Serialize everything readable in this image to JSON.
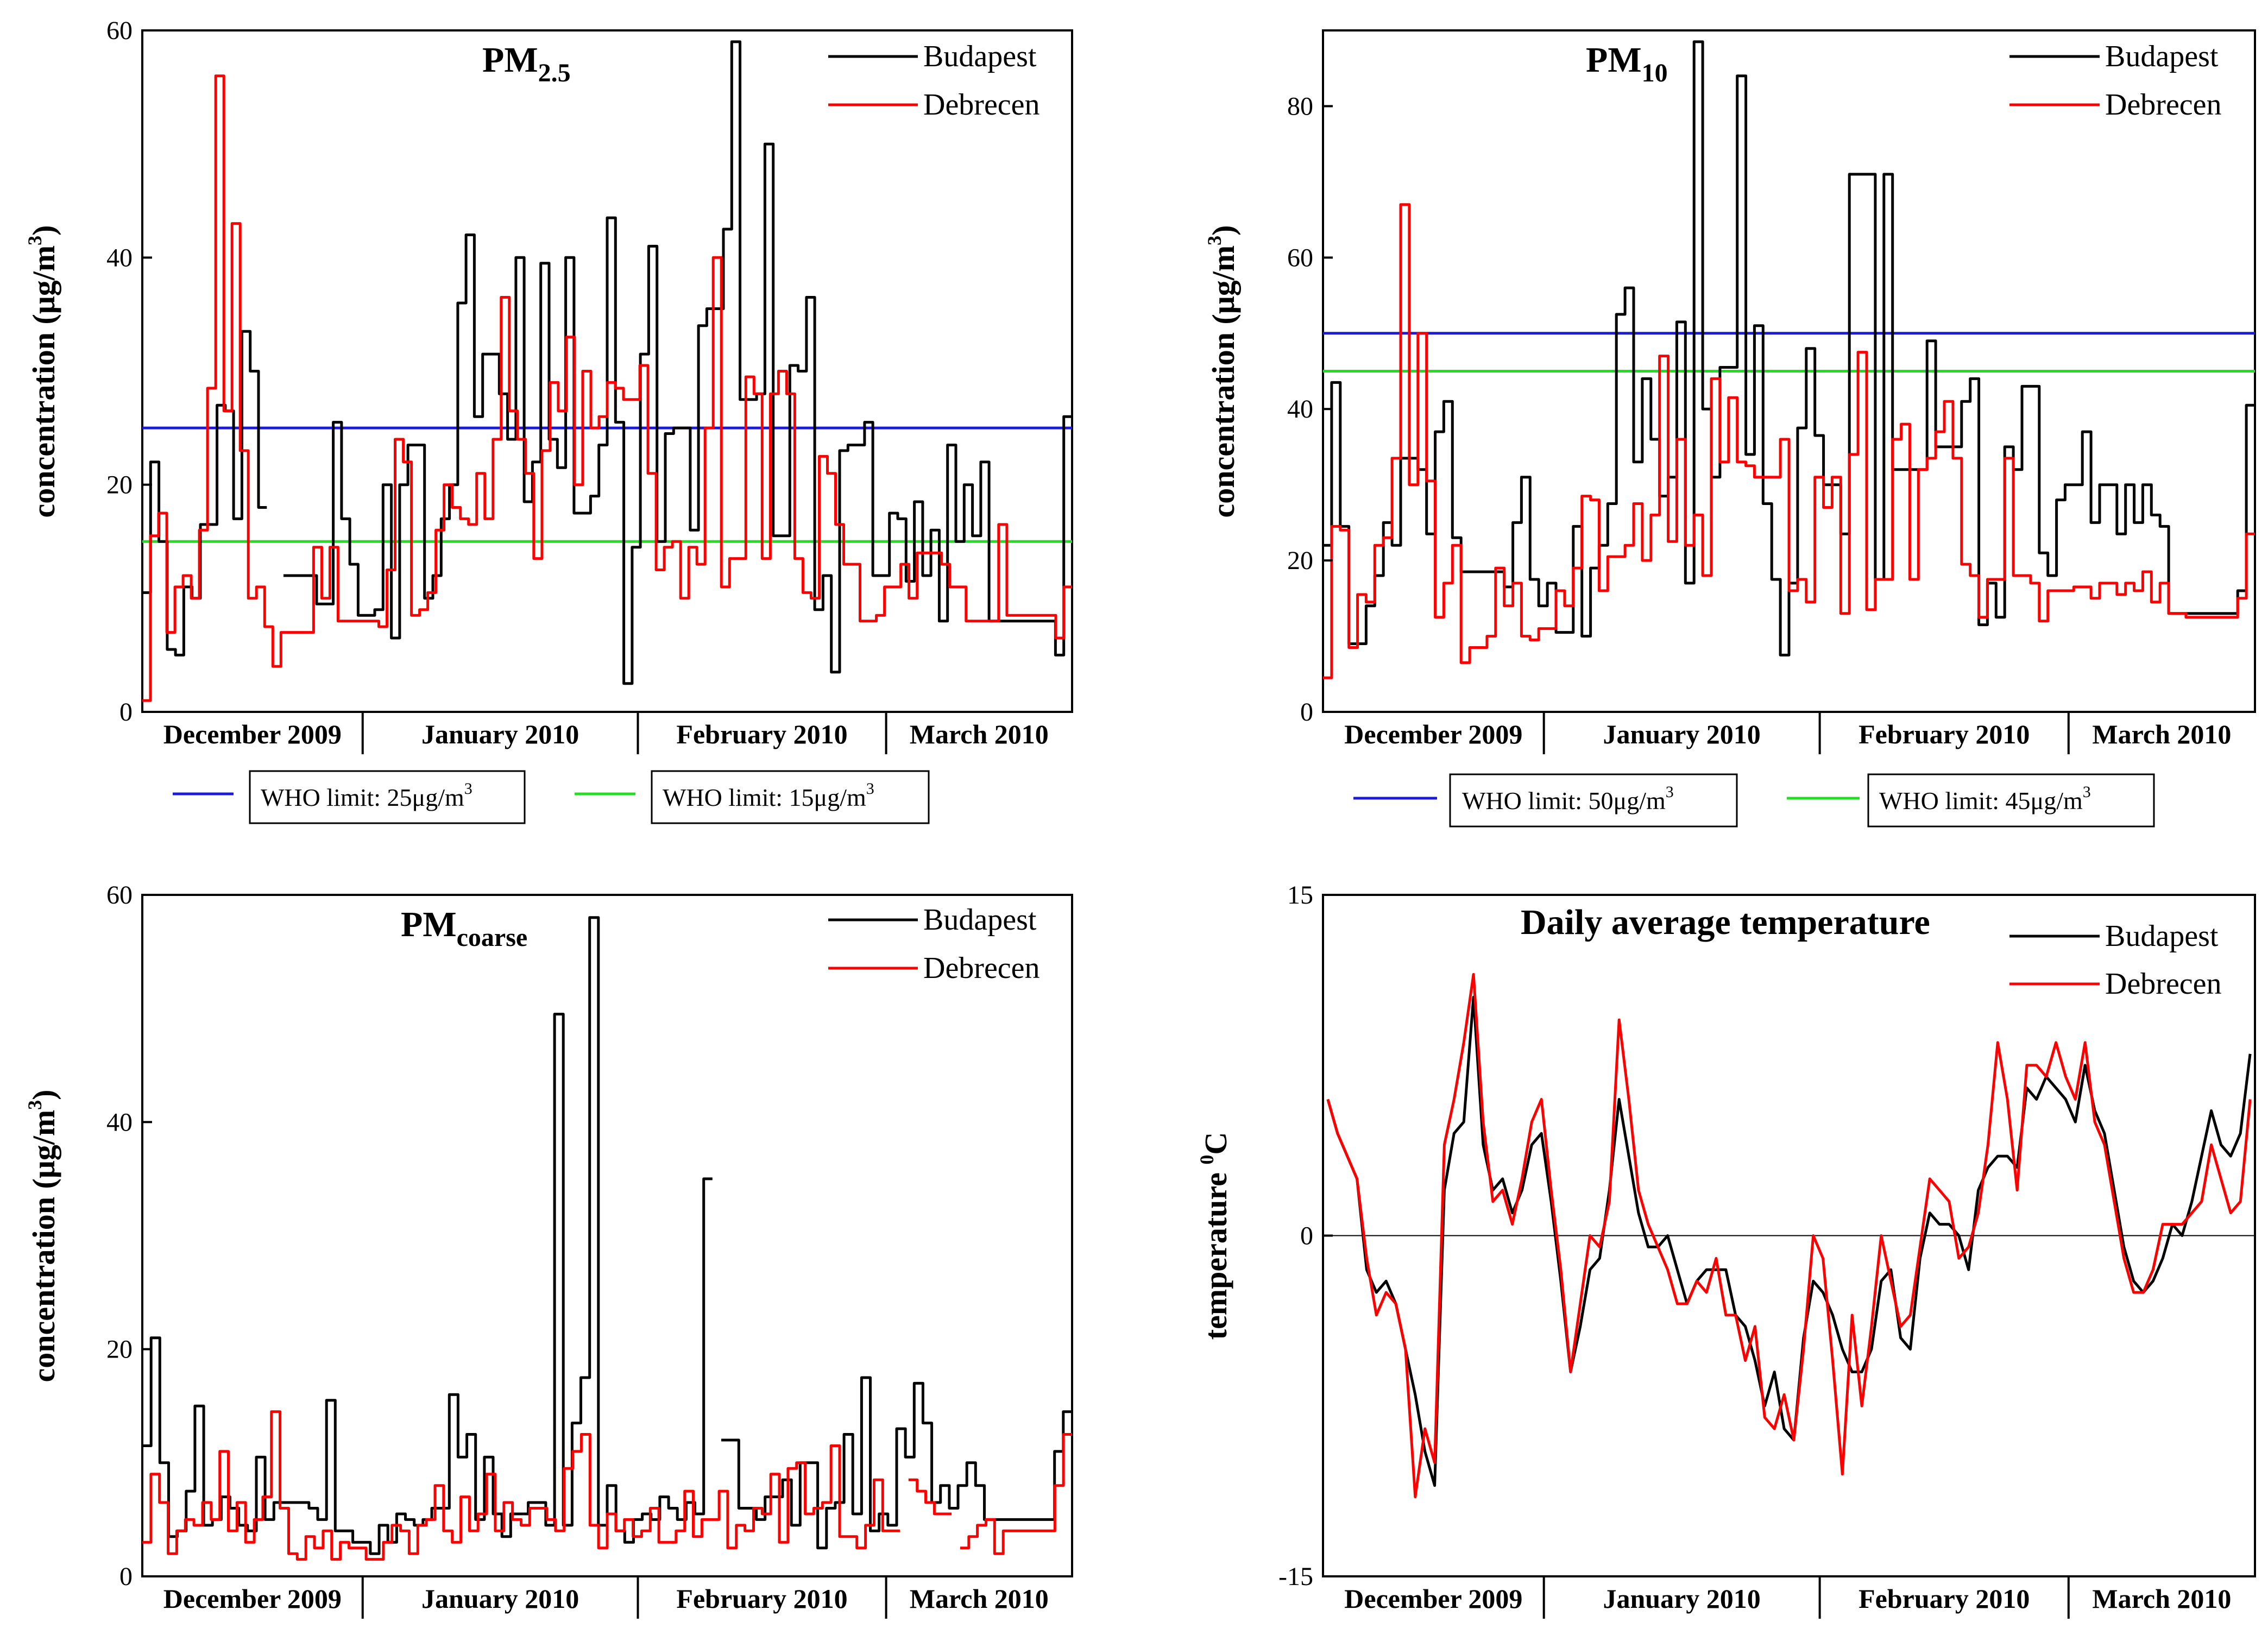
{
  "chart_data": [
    {
      "id": "pm25",
      "type": "line",
      "step": true,
      "title": "PM",
      "title_sub": "2.5",
      "ylabel": "concentration (μg/m",
      "ylabel_sup": "3",
      "ylabel_close": ")",
      "ylim": [
        0,
        60
      ],
      "yticks": [
        0,
        20,
        40,
        60
      ],
      "months": [
        "December 2009",
        "January 2010",
        "February 2010",
        "March 2010"
      ],
      "x_range": [
        0,
        120
      ],
      "hlines": [
        {
          "value": 25,
          "color": "#1a1adb",
          "label": "WHO limit: 25μg/m",
          "sup": "3"
        },
        {
          "value": 15,
          "color": "#22dd22",
          "label": "WHO limit: 15μg/m",
          "sup": "3"
        }
      ],
      "series": [
        {
          "name": "Budapest",
          "color": "#000000",
          "values": [
            10.5,
            22,
            15,
            5.5,
            5,
            11,
            10,
            16.5,
            16.5,
            27,
            26.5,
            17,
            33.5,
            30,
            18,
            null,
            null,
            12,
            12,
            12,
            12,
            9.5,
            9.5,
            25.5,
            17,
            13,
            8.5,
            8.5,
            9,
            20,
            6.5,
            20,
            23.5,
            23.5,
            10,
            12,
            17,
            20,
            36,
            42,
            26,
            31.5,
            31.5,
            28,
            24,
            40,
            18.5,
            22,
            39.5,
            24,
            21.5,
            40,
            17.5,
            17.5,
            19,
            23.5,
            43.5,
            25.5,
            2.5,
            14.5,
            31.5,
            41,
            15,
            24.5,
            25,
            25,
            16,
            34,
            35.5,
            35.5,
            42.5,
            59,
            27.5,
            27.5,
            28,
            50,
            15.5,
            15.5,
            30.5,
            30,
            36.5,
            9,
            12,
            3.5,
            23,
            23.5,
            23.5,
            25.5,
            12,
            12,
            17.5,
            17,
            11.5,
            18.5,
            12,
            16,
            8,
            23.5,
            15,
            20,
            15.5,
            22,
            8,
            8,
            8,
            8,
            8,
            8,
            8,
            8,
            5,
            26
          ]
        },
        {
          "name": "Debrecen",
          "color": "#ff0000",
          "values": [
            1,
            15.5,
            17.5,
            7,
            11,
            12,
            10,
            16,
            28.5,
            56,
            26.5,
            43,
            23,
            10,
            11,
            7.5,
            4,
            7,
            7,
            7,
            7,
            14.5,
            10,
            14.5,
            8,
            8,
            8,
            8,
            8,
            7.5,
            12.5,
            24,
            22,
            8.5,
            9,
            10.5,
            16,
            20,
            18,
            17,
            16.5,
            21,
            17,
            24,
            36.5,
            26.5,
            24,
            21,
            13.5,
            23,
            29,
            26.5,
            33,
            20,
            30,
            25,
            26,
            29,
            28.5,
            27.5,
            27.5,
            30.5,
            21,
            12.5,
            14.5,
            15,
            10,
            14.5,
            13,
            25,
            40,
            11,
            13.5,
            13.5,
            29.5,
            28,
            13.5,
            28,
            30,
            28,
            13.5,
            10.5,
            10,
            22.5,
            21,
            16.5,
            13,
            13,
            8,
            8,
            8.5,
            11,
            11,
            13,
            10,
            14,
            14,
            14,
            13,
            11,
            11,
            8,
            8,
            8,
            8,
            16.5,
            8.5,
            8.5,
            8.5,
            8.5,
            8.5,
            8.5,
            6.5,
            11
          ]
        }
      ]
    },
    {
      "id": "pm10",
      "type": "line",
      "step": true,
      "title": "PM",
      "title_sub": "10",
      "ylabel": "concentration (μg/m",
      "ylabel_sup": "3",
      "ylabel_close": ")",
      "ylim": [
        0,
        90
      ],
      "yticks": [
        0,
        20,
        40,
        60,
        80
      ],
      "months": [
        "December 2009",
        "January 2010",
        "February 2010",
        "March 2010"
      ],
      "x_range": [
        0,
        120
      ],
      "hlines": [
        {
          "value": 50,
          "color": "#1a1adb",
          "label": "WHO limit: 50μg/m",
          "sup": "3"
        },
        {
          "value": 45,
          "color": "#22dd22",
          "label": "WHO limit: 45μg/m",
          "sup": "3"
        }
      ],
      "series": [
        {
          "name": "Budapest",
          "color": "#000000",
          "values": [
            22,
            43.5,
            24.5,
            9,
            9,
            14,
            18,
            25,
            22,
            33.5,
            33.5,
            32,
            23.5,
            37,
            41,
            23,
            18.5,
            18.5,
            18.5,
            18.5,
            18.5,
            16.5,
            25,
            31,
            17.5,
            14,
            17,
            10.5,
            10.5,
            24.5,
            10,
            19,
            22,
            27.5,
            52.5,
            56,
            33,
            44,
            36,
            28.5,
            31,
            51.5,
            17,
            88.5,
            40,
            31,
            45.5,
            45.5,
            84,
            34,
            51,
            27.5,
            17.5,
            7.5,
            17,
            37.5,
            48,
            36.5,
            30,
            30,
            23.5,
            71,
            71,
            71,
            17.5,
            71,
            32,
            32,
            32,
            32,
            49,
            35,
            35,
            35,
            41,
            44,
            11.5,
            17,
            12.5,
            35,
            32,
            43,
            43,
            21,
            18,
            28,
            30,
            30,
            37,
            25,
            30,
            30,
            23.5,
            30,
            25,
            30,
            26,
            24.5,
            13,
            13,
            13,
            13,
            13,
            13,
            13,
            13,
            16,
            40.5
          ]
        },
        {
          "name": "Debrecen",
          "color": "#ff0000",
          "values": [
            4.5,
            24.5,
            24,
            8.5,
            15.5,
            14.5,
            22,
            23,
            33.5,
            67,
            30,
            50,
            30.5,
            12.5,
            17,
            22,
            6.5,
            8.5,
            8.5,
            10,
            19,
            14,
            17,
            10,
            9.5,
            11,
            11,
            16,
            14,
            19,
            28.5,
            28,
            16,
            20.5,
            20.5,
            22,
            27.5,
            20,
            26,
            47,
            22.5,
            36,
            22,
            26,
            18,
            44,
            33,
            41.5,
            33,
            32.5,
            31,
            31,
            31,
            36,
            16,
            17.5,
            14.5,
            31,
            27,
            31,
            13,
            34,
            47.5,
            13.5,
            17.5,
            17.5,
            36,
            38,
            17.5,
            32,
            33.5,
            37,
            41,
            33.5,
            19.5,
            18,
            12.5,
            17.5,
            17.5,
            33.5,
            18,
            18,
            17,
            12,
            16,
            16,
            16,
            16.5,
            16.5,
            15,
            17,
            17,
            15.5,
            17,
            16,
            18.5,
            14.5,
            17,
            13,
            13,
            12.5,
            12.5,
            12.5,
            12.5,
            12.5,
            12.5,
            15,
            23.5
          ]
        }
      ]
    },
    {
      "id": "pmcoarse",
      "type": "line",
      "step": true,
      "title": "PM",
      "title_sub": "coarse",
      "ylabel": "concentration (μg/m",
      "ylabel_sup": "3",
      "ylabel_close": ")",
      "ylim": [
        0,
        60
      ],
      "yticks": [
        0,
        20,
        40,
        60
      ],
      "months": [
        "December 2009",
        "January 2010",
        "February 2010",
        "March 2010"
      ],
      "x_range": [
        0,
        120
      ],
      "hlines": [],
      "series": [
        {
          "name": "Budapest",
          "color": "#000000",
          "values": [
            11.5,
            21,
            10,
            3.5,
            4,
            7.5,
            15,
            4.5,
            5,
            7,
            6,
            4.5,
            4,
            10.5,
            5,
            6.5,
            6.5,
            6.5,
            6.5,
            6,
            5,
            15.5,
            4,
            4,
            3,
            3,
            2,
            4.5,
            3,
            5.5,
            5,
            4.5,
            5,
            6,
            6,
            16,
            10.5,
            12.5,
            5,
            10.5,
            5.5,
            3.5,
            5.5,
            5.5,
            6.5,
            6.5,
            4.5,
            49.5,
            4.5,
            13.5,
            17.5,
            58,
            4.5,
            8,
            4,
            3,
            5,
            5.5,
            5,
            7,
            6,
            5,
            6.5,
            5.5,
            35,
            null,
            12,
            12,
            6,
            6,
            5,
            7,
            7,
            8.5,
            4.5,
            10,
            10,
            2.5,
            6,
            6.5,
            12.5,
            5.5,
            17.5,
            4,
            5.5,
            4.5,
            13,
            10.5,
            17,
            13.5,
            6.5,
            8,
            6,
            8,
            10,
            8,
            5,
            5,
            5,
            5,
            5,
            5,
            5,
            5,
            11,
            14.5
          ]
        },
        {
          "name": "Debrecen",
          "color": "#ff0000",
          "values": [
            3,
            9,
            6.5,
            2,
            4,
            5,
            4.5,
            6.5,
            5,
            11,
            4,
            6.5,
            3,
            5,
            7,
            14.5,
            6,
            2,
            1.5,
            3.5,
            2.5,
            4,
            1.5,
            3,
            2.5,
            2.5,
            1.5,
            1.5,
            3,
            4.5,
            4,
            2,
            4.5,
            5,
            8,
            4,
            3,
            7,
            4,
            5.5,
            9,
            4,
            6.5,
            5,
            4.5,
            6,
            6,
            5,
            4,
            9.5,
            11,
            12.5,
            4.5,
            2.5,
            5.5,
            4,
            5,
            3.5,
            4,
            6,
            3,
            3,
            4,
            7.5,
            3.5,
            5,
            5,
            7.5,
            2.5,
            4.5,
            4,
            6,
            5.5,
            9,
            3,
            9.5,
            10,
            5.5,
            6,
            6.5,
            11.5,
            3.5,
            3.5,
            2.5,
            4.5,
            8.5,
            4,
            4,
            null,
            8.5,
            7.5,
            6.5,
            5.5,
            5.5,
            null,
            2.5,
            3.5,
            4.5,
            5,
            2,
            4,
            4,
            4,
            4,
            4,
            4,
            8,
            12.5
          ]
        }
      ]
    },
    {
      "id": "temperature",
      "type": "line",
      "step": false,
      "title": "Daily average temperature",
      "title_sub": "",
      "ylabel": "temperature ",
      "ylabel_sup": "0",
      "ylabel_close": "C",
      "ylim": [
        -15,
        15
      ],
      "yticks": [
        -15,
        0,
        15
      ],
      "zero_line": true,
      "months": [
        "December 2009",
        "January 2010",
        "February 2010",
        "March 2010"
      ],
      "x_range": [
        0,
        120
      ],
      "hlines": [],
      "series": [
        {
          "name": "Budapest",
          "color": "#000000",
          "values": [
            6,
            4.5,
            3.5,
            2.5,
            -1.5,
            -2.5,
            -2,
            -3,
            -5,
            -7,
            -9.5,
            -11,
            2,
            4.5,
            5,
            10.5,
            4,
            2,
            2.5,
            1,
            2,
            4,
            4.5,
            1.5,
            -2,
            -6,
            -4,
            -1.5,
            -1,
            2,
            6,
            3.5,
            1,
            -0.5,
            -0.5,
            0,
            -1.5,
            -3,
            -2,
            -1.5,
            -1.5,
            -1.5,
            -3.5,
            -4,
            -5.5,
            -7.5,
            -6,
            -8.5,
            -9,
            -4.5,
            -2,
            -2.5,
            -3.5,
            -5,
            -6,
            -6,
            -5,
            -2,
            -1.5,
            -4.5,
            -5,
            -1,
            1,
            0.5,
            0.5,
            0,
            -1.5,
            2,
            3,
            3.5,
            3.5,
            3,
            6.5,
            6,
            7,
            6.5,
            6,
            5,
            7.5,
            5.5,
            4.5,
            2,
            -0.5,
            -2,
            -2.5,
            -2,
            -1,
            0.5,
            0,
            1.5,
            3.5,
            5.5,
            4,
            3.5,
            4.5,
            8
          ]
        },
        {
          "name": "Debrecen",
          "color": "#ff0000",
          "values": [
            6,
            4.5,
            3.5,
            2.5,
            -1,
            -3.5,
            -2.5,
            -3,
            -5,
            -11.5,
            -8.5,
            -10,
            4,
            6,
            8.5,
            11.5,
            5,
            1.5,
            2,
            0.5,
            2.5,
            5,
            6,
            2,
            -1.5,
            -6,
            -3,
            0,
            -0.5,
            1.5,
            9.5,
            6,
            2,
            0.5,
            -0.5,
            -1.5,
            -3,
            -3,
            -2,
            -2.5,
            -1,
            -3.5,
            -3.5,
            -5.5,
            -4,
            -8,
            -8.5,
            -7,
            -9,
            -5,
            0,
            -1,
            -5.5,
            -10.5,
            -3.5,
            -7.5,
            -4,
            0,
            -2,
            -4,
            -3.5,
            -0.5,
            2.5,
            2,
            1.5,
            -1,
            -0.5,
            1,
            4,
            8.5,
            6,
            2,
            7.5,
            7.5,
            7,
            8.5,
            7,
            6,
            8.5,
            5,
            4,
            1.5,
            -1,
            -2.5,
            -2.5,
            -1.5,
            0.5,
            0.5,
            0.5,
            1,
            1.5,
            4,
            2.5,
            1,
            1.5,
            6
          ]
        }
      ]
    }
  ]
}
